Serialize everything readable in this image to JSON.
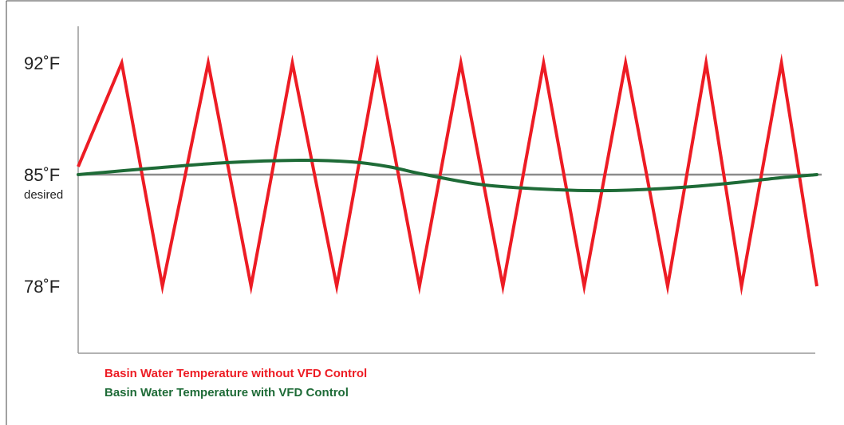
{
  "chart_data": {
    "type": "line",
    "title": "",
    "xlabel": "",
    "ylabel": "",
    "y_ticks": [
      {
        "value": 92,
        "label": "92˚F"
      },
      {
        "value": 85,
        "label": "85˚F",
        "sublabel": "desired"
      },
      {
        "value": 78,
        "label": "78˚F"
      }
    ],
    "reference_line": {
      "value": 85
    },
    "x_range": [
      0,
      100
    ],
    "ylim": [
      73.8,
      94.3
    ],
    "grid": false,
    "legend_position": "bottom-left",
    "series": [
      {
        "name": "Basin Water Temperature without VFD Control",
        "color": "#ed1c24",
        "points": [
          [
            0,
            85.5
          ],
          [
            5.9,
            92
          ],
          [
            11.4,
            78
          ],
          [
            17.6,
            92
          ],
          [
            23.4,
            78
          ],
          [
            29.0,
            92
          ],
          [
            35.0,
            78
          ],
          [
            40.5,
            92
          ],
          [
            46.2,
            78
          ],
          [
            51.8,
            92
          ],
          [
            57.5,
            78
          ],
          [
            63.0,
            92
          ],
          [
            68.5,
            78
          ],
          [
            74.1,
            92
          ],
          [
            79.8,
            78
          ],
          [
            85.0,
            92
          ],
          [
            89.8,
            78
          ],
          [
            95.2,
            92
          ],
          [
            100,
            78
          ]
        ]
      },
      {
        "name": "Basin Water Temperature with VFD Control",
        "color": "#1e6b37",
        "points": [
          [
            0,
            85
          ],
          [
            10,
            85.4
          ],
          [
            20,
            85.75
          ],
          [
            30,
            85.9
          ],
          [
            37,
            85.8
          ],
          [
            42,
            85.5
          ],
          [
            47,
            85
          ],
          [
            55,
            84.35
          ],
          [
            65,
            84.05
          ],
          [
            72,
            84.0
          ],
          [
            80,
            84.15
          ],
          [
            88,
            84.45
          ],
          [
            95,
            84.8
          ],
          [
            100,
            85
          ]
        ]
      }
    ]
  },
  "legend": {
    "items": [
      {
        "label": "Basin Water Temperature without VFD Control",
        "color": "#ed1c24"
      },
      {
        "label": "Basin Water Temperature with VFD Control",
        "color": "#1e6b37"
      }
    ]
  }
}
